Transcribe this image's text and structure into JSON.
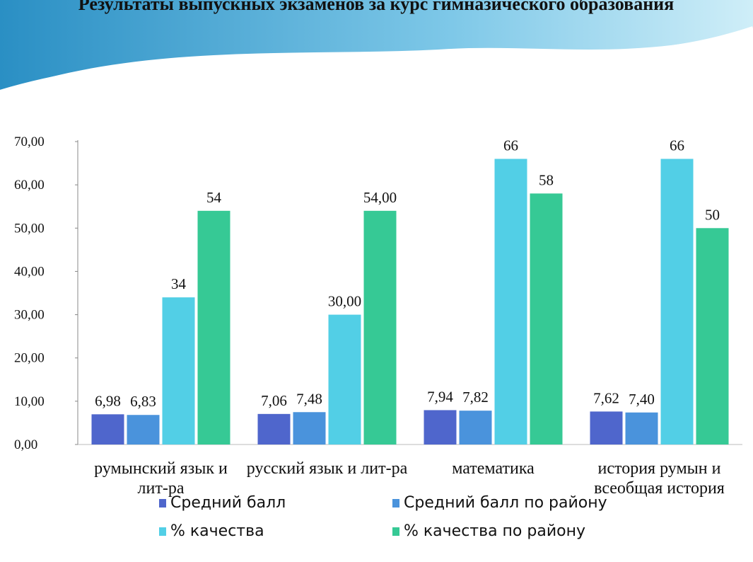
{
  "chart_data": {
    "type": "bar",
    "title": "Результаты выпускных экзаменов за курс гимназического образования",
    "categories": [
      "румынский язык и лит-ра",
      "русский язык и лит-ра",
      "математика",
      "история румын и всеобщая история"
    ],
    "series": [
      {
        "name": "Средний балл",
        "color": "#4f66cc",
        "values": [
          6.98,
          7.06,
          7.94,
          7.62
        ],
        "value_labels": [
          "6,98",
          "7,06",
          "7,94",
          "7,62"
        ]
      },
      {
        "name": "Средний балл по району",
        "color": "#4a93dc",
        "values": [
          6.83,
          7.48,
          7.82,
          7.4
        ],
        "value_labels": [
          "6,83",
          "7,48",
          "7,82",
          "7,40"
        ]
      },
      {
        "name": "% качества",
        "color": "#52cfe6",
        "values": [
          34,
          30,
          66,
          66
        ],
        "value_labels": [
          "34",
          "30,00",
          "66",
          "66"
        ]
      },
      {
        "name": "% качества по району",
        "color": "#36c995",
        "values": [
          54,
          54,
          58,
          50
        ],
        "value_labels": [
          "54",
          "54,00",
          "58",
          "50"
        ]
      }
    ],
    "ylim": [
      0,
      70
    ],
    "yticks": [
      {
        "value": 0,
        "label": "0,00"
      },
      {
        "value": 10,
        "label": "10,00"
      },
      {
        "value": 20,
        "label": "20,00"
      },
      {
        "value": 30,
        "label": "30,00"
      },
      {
        "value": 40,
        "label": "40,00"
      },
      {
        "value": 50,
        "label": "50,00"
      },
      {
        "value": 60,
        "label": "60,00"
      },
      {
        "value": 70,
        "label": "70,00"
      }
    ],
    "grid": false
  }
}
